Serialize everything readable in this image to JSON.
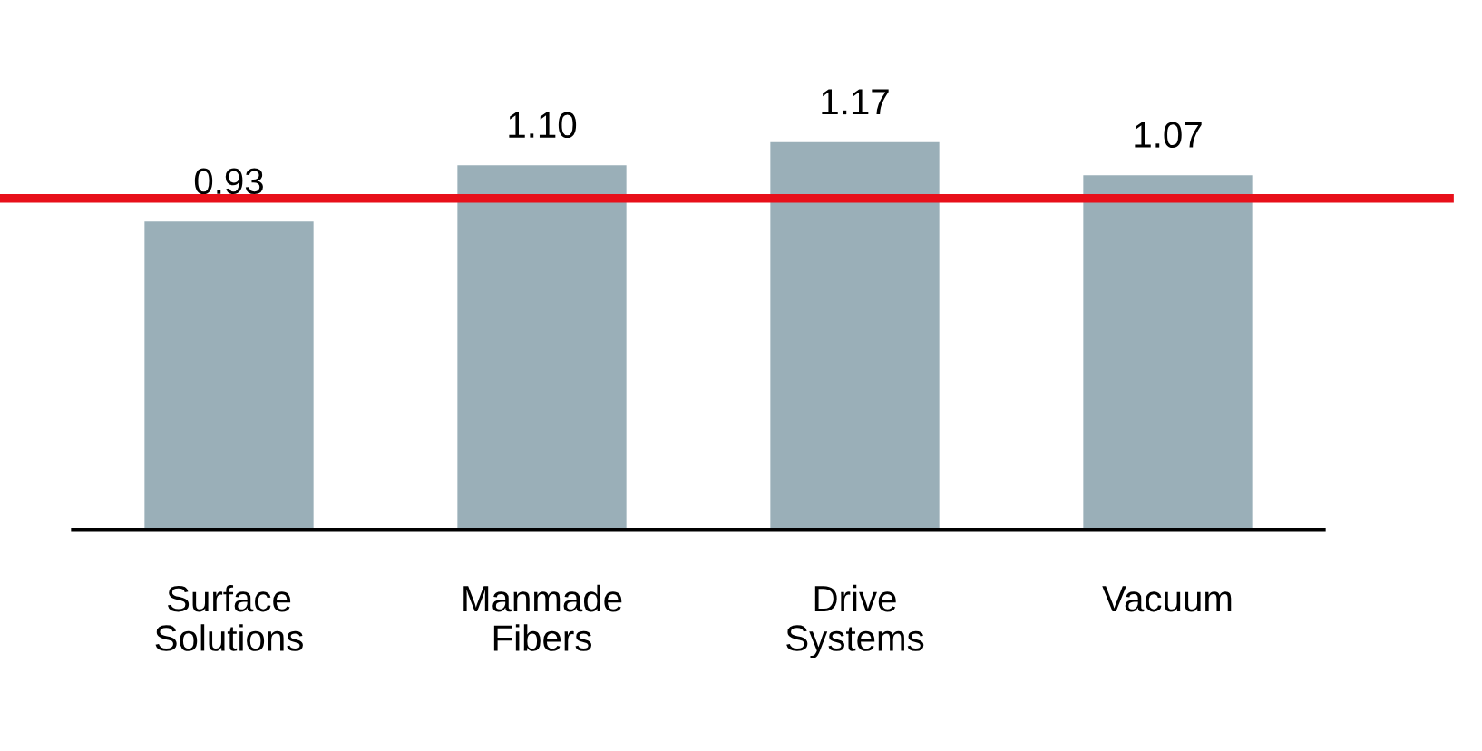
{
  "chart_data": {
    "type": "bar",
    "categories": [
      "Surface Solutions",
      "Manmade Fibers",
      "Drive Systems",
      "Vacuum"
    ],
    "values": [
      0.93,
      1.1,
      1.17,
      1.07
    ],
    "value_labels": [
      "0.93",
      "1.10",
      "1.17",
      "1.07"
    ],
    "color": "#9aafb8",
    "grid": false,
    "legend": false,
    "tick_labels": "x",
    "ref_lines": [
      {
        "axis": "y",
        "value": 1.0,
        "color": "#e8101a"
      }
    ]
  }
}
